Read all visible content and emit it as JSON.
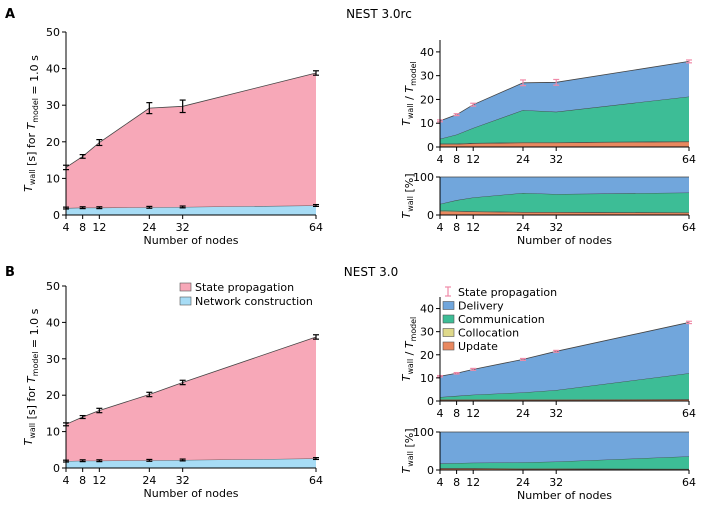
{
  "panel_labels": [
    "A",
    "B"
  ],
  "colors": {
    "state_propagation": "#f7a8b8",
    "network_construction": "#a7dcf5",
    "delivery": "#71a6dc",
    "communication": "#3dbd96",
    "collocation": "#dfd98a",
    "update": "#e9885f",
    "err_pink": "#f08aa8",
    "edge": "#333333"
  },
  "chart_data": [
    {
      "id": "A_left",
      "type": "area",
      "title": "NEST 3.0rc",
      "nodes": [
        4,
        8,
        12,
        24,
        32,
        64
      ],
      "xticks": [
        "4",
        "8",
        "12",
        "24",
        "32",
        "64"
      ],
      "xlabel": "Number of nodes",
      "ylabel": "T_wall [s] for T_model = 1.0 s",
      "ylim": [
        0,
        50
      ],
      "yticks": [
        "0",
        "10",
        "20",
        "30",
        "40",
        "50"
      ],
      "series": [
        {
          "name": "Network construction",
          "values": [
            1.9,
            2.0,
            2.0,
            2.1,
            2.2,
            2.6
          ]
        },
        {
          "name": "State propagation",
          "totals": [
            13.0,
            16.0,
            19.8,
            29.2,
            29.7,
            38.8
          ],
          "errors": [
            0.6,
            0.5,
            0.8,
            1.5,
            1.7,
            0.6
          ]
        }
      ]
    },
    {
      "id": "A_right_top",
      "type": "area",
      "nodes": [
        4,
        8,
        12,
        24,
        32,
        64
      ],
      "xticks": [
        "4",
        "8",
        "12",
        "24",
        "32",
        "64"
      ],
      "ylabel": "T_wall / T_model",
      "ylim": [
        0,
        45
      ],
      "yticks": [
        "0",
        "10",
        "20",
        "30",
        "40"
      ],
      "series": [
        {
          "name": "Update",
          "values": [
            1.2,
            1.2,
            1.5,
            1.8,
            1.8,
            2.2
          ]
        },
        {
          "name": "Collocation",
          "values": [
            0.2,
            0.2,
            0.2,
            0.2,
            0.2,
            0.2
          ]
        },
        {
          "name": "Communication",
          "values": [
            2.0,
            3.8,
            6.3,
            13.5,
            12.8,
            18.8
          ]
        },
        {
          "name": "Delivery",
          "values": [
            7.6,
            8.4,
            9.8,
            11.5,
            12.4,
            14.8
          ]
        }
      ],
      "totals": [
        11.0,
        13.6,
        17.8,
        27.0,
        27.2,
        36.0
      ],
      "errors": [
        0.4,
        0.4,
        0.6,
        1.2,
        1.2,
        0.6
      ]
    },
    {
      "id": "A_right_bottom",
      "type": "area",
      "nodes": [
        4,
        8,
        12,
        24,
        32,
        64
      ],
      "xticks": [
        "4",
        "8",
        "12",
        "24",
        "32",
        "64"
      ],
      "xlabel": "Number of nodes",
      "ylabel": "T_wall [%]",
      "ylim": [
        0,
        100
      ],
      "yticks": [
        "0",
        "100"
      ],
      "series": [
        {
          "name": "Update",
          "values": [
            10,
            9,
            9,
            7,
            7,
            6
          ]
        },
        {
          "name": "Collocation",
          "values": [
            2,
            2,
            1,
            1,
            1,
            1
          ]
        },
        {
          "name": "Communication",
          "values": [
            17,
            28,
            36,
            50,
            47,
            52
          ]
        },
        {
          "name": "Delivery",
          "values": [
            71,
            61,
            54,
            42,
            45,
            41
          ]
        }
      ]
    },
    {
      "id": "B_left",
      "type": "area",
      "title": "NEST 3.0",
      "nodes": [
        4,
        8,
        12,
        24,
        32,
        64
      ],
      "xticks": [
        "4",
        "8",
        "12",
        "24",
        "32",
        "64"
      ],
      "xlabel": "Number of nodes",
      "ylabel": "T_wall [s] for T_model = 1.0 s",
      "ylim": [
        0,
        50
      ],
      "yticks": [
        "0",
        "10",
        "20",
        "30",
        "40",
        "50"
      ],
      "legend": [
        "State propagation",
        "Network construction"
      ],
      "series": [
        {
          "name": "Network construction",
          "values": [
            1.9,
            2.0,
            2.0,
            2.1,
            2.2,
            2.6
          ]
        },
        {
          "name": "State propagation",
          "totals": [
            12.0,
            14.0,
            15.8,
            20.2,
            23.5,
            36.0
          ],
          "errors": [
            0.4,
            0.4,
            0.6,
            0.6,
            0.6,
            0.6
          ]
        }
      ]
    },
    {
      "id": "B_right_top",
      "type": "area",
      "nodes": [
        4,
        8,
        12,
        24,
        32,
        64
      ],
      "xticks": [
        "4",
        "8",
        "12",
        "24",
        "32",
        "64"
      ],
      "ylabel": "T_wall / T_model",
      "ylim": [
        0,
        45
      ],
      "yticks": [
        "0",
        "10",
        "20",
        "30",
        "40"
      ],
      "legend": [
        "State propagation",
        "Delivery",
        "Communication",
        "Collocation",
        "Update"
      ],
      "series": [
        {
          "name": "Update",
          "values": [
            0.5,
            0.5,
            0.5,
            0.5,
            0.5,
            0.6
          ]
        },
        {
          "name": "Collocation",
          "values": [
            0.2,
            0.2,
            0.2,
            0.2,
            0.2,
            0.2
          ]
        },
        {
          "name": "Communication",
          "values": [
            1.0,
            1.5,
            2.0,
            3.0,
            4.0,
            11.2
          ]
        },
        {
          "name": "Delivery",
          "values": [
            9.0,
            9.8,
            11.0,
            14.3,
            16.8,
            22.0
          ]
        }
      ],
      "totals": [
        10.7,
        12.0,
        13.7,
        18.0,
        21.5,
        34.0
      ],
      "errors": [
        0.3,
        0.3,
        0.4,
        0.4,
        0.4,
        0.5
      ]
    },
    {
      "id": "B_right_bottom",
      "type": "area",
      "nodes": [
        4,
        8,
        12,
        24,
        32,
        64
      ],
      "xticks": [
        "4",
        "8",
        "12",
        "24",
        "32",
        "64"
      ],
      "xlabel": "Number of nodes",
      "ylabel": "T_wall [%]",
      "ylim": [
        0,
        100
      ],
      "yticks": [
        "0",
        "100"
      ],
      "series": [
        {
          "name": "Update",
          "values": [
            4,
            4,
            4,
            3,
            3,
            2
          ]
        },
        {
          "name": "Collocation",
          "values": [
            1,
            1,
            1,
            1,
            1,
            1
          ]
        },
        {
          "name": "Communication",
          "values": [
            12,
            13,
            14,
            16,
            18,
            33
          ]
        },
        {
          "name": "Delivery",
          "values": [
            83,
            82,
            81,
            80,
            78,
            64
          ]
        }
      ]
    }
  ]
}
